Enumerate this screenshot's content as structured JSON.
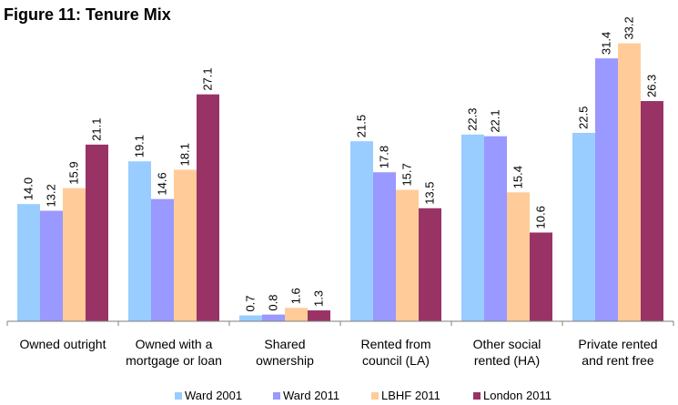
{
  "chart_data": {
    "type": "bar",
    "title": "Figure 11: Tenure Mix",
    "categories": [
      [
        "Owned outright"
      ],
      [
        "Owned with a",
        "mortgage or loan"
      ],
      [
        "Shared",
        "ownership"
      ],
      [
        "Rented from",
        "council (LA)"
      ],
      [
        "Other social",
        "rented (HA)"
      ],
      [
        "Private rented",
        "and rent free"
      ]
    ],
    "series": [
      {
        "name": "Ward 2001",
        "color": "#99ccff",
        "values": [
          14.0,
          19.1,
          0.7,
          21.5,
          22.3,
          22.5
        ],
        "labels": [
          "14.0",
          "19.1",
          "0.7",
          "21.5",
          "22.3",
          "22.5"
        ]
      },
      {
        "name": "Ward 2011",
        "color": "#9999ff",
        "values": [
          13.2,
          14.6,
          0.8,
          17.8,
          22.1,
          31.4
        ],
        "labels": [
          "13.2",
          "14.6",
          "0.8",
          "17.8",
          "22.1",
          "31.4"
        ]
      },
      {
        "name": "LBHF 2011",
        "color": "#ffcc99",
        "values": [
          15.9,
          18.1,
          1.6,
          15.7,
          15.4,
          33.2
        ],
        "labels": [
          "15.9",
          "18.1",
          "1.6",
          "15.7",
          "15.4",
          "33.2"
        ]
      },
      {
        "name": "London 2011",
        "color": "#993366",
        "values": [
          21.1,
          27.1,
          1.3,
          13.5,
          10.6,
          26.3
        ],
        "labels": [
          "21.1",
          "27.1",
          "1.3",
          "13.5",
          "10.6",
          "26.3"
        ]
      }
    ],
    "ylim": [
      0,
      35
    ],
    "grid": false,
    "legend_position": "bottom",
    "data_labels": "rotated-vertical"
  }
}
